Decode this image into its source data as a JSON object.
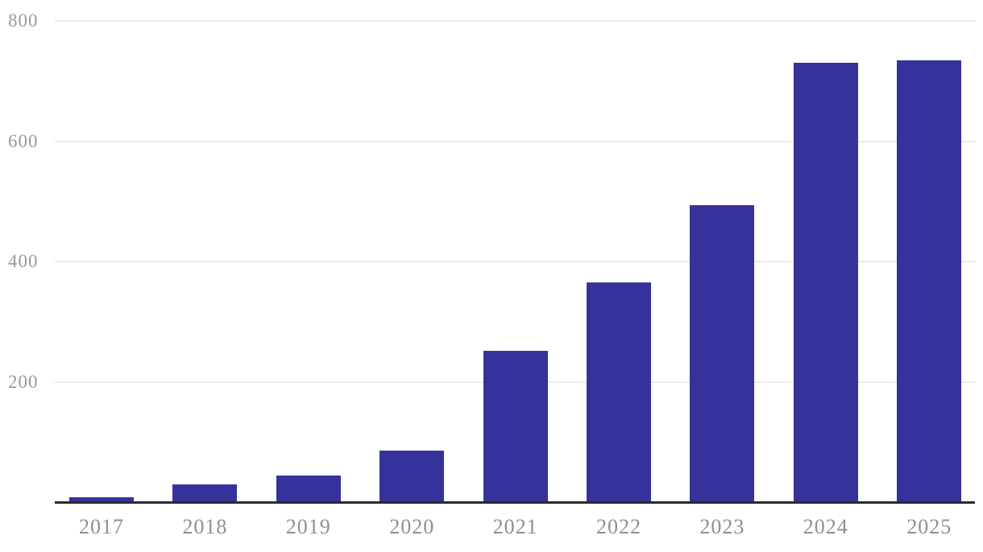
{
  "chart_data": {
    "type": "bar",
    "title": "",
    "xlabel": "",
    "ylabel": "",
    "categories": [
      "2017",
      "2018",
      "2019",
      "2020",
      "2021",
      "2022",
      "2023",
      "2024",
      "2025"
    ],
    "values": [
      8,
      30,
      44,
      85,
      252,
      365,
      493,
      730,
      735
    ],
    "yticks": [
      200,
      400,
      600,
      800
    ],
    "ylim": [
      0,
      835
    ],
    "grid": true,
    "legend_position": "none",
    "colors": {
      "bar": "#35329b",
      "grid_line": "#ececec",
      "axis_line": "#2b2b2e",
      "y_tick_label": "#9a9a9a",
      "x_tick_label": "#8f8f8f",
      "background": "#ffffff"
    }
  }
}
